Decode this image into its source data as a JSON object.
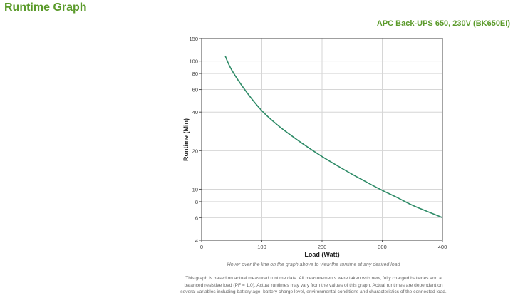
{
  "header": {
    "title": "Runtime Graph",
    "product": "APC Back-UPS 650, 230V (BK650EI)"
  },
  "footer": {
    "hover_note": "Hover over the line on the graph above to view the runtime at any desired load",
    "disclaimer": "This graph is based on actual measured runtime data. All measurements were taken with new, fully charged batteries and a balanced resistive load (PF = 1.0). Actual runtimes may vary from the values of this graph. Actual runtimes are dependent on several variables including battery age, battery charge level, environmental conditions and characteristics of the connected load."
  },
  "colors": {
    "title": "#5a9a2a",
    "line": "#2e8b67",
    "grid": "#d6d6d6",
    "axis": "#555555"
  },
  "chart_data": {
    "type": "line",
    "title": "",
    "xlabel": "Load (Watt)",
    "ylabel": "Runtime (Min)",
    "xlim": [
      0,
      400
    ],
    "ylim": [
      4,
      150
    ],
    "yscale": "log",
    "xticks": [
      0,
      100,
      200,
      300,
      400
    ],
    "yticks": [
      4,
      6,
      8,
      10,
      20,
      40,
      60,
      80,
      100,
      150
    ],
    "grid": true,
    "legend": null,
    "series": [
      {
        "name": "Runtime",
        "x": [
          39,
          50,
          75,
          100,
          125,
          150,
          175,
          200,
          225,
          250,
          275,
          300,
          325,
          350,
          375,
          400
        ],
        "values": [
          110,
          85,
          57,
          41,
          32,
          26,
          21.5,
          18,
          15.3,
          13.1,
          11.3,
          9.8,
          8.6,
          7.5,
          6.7,
          6.0
        ]
      }
    ]
  }
}
